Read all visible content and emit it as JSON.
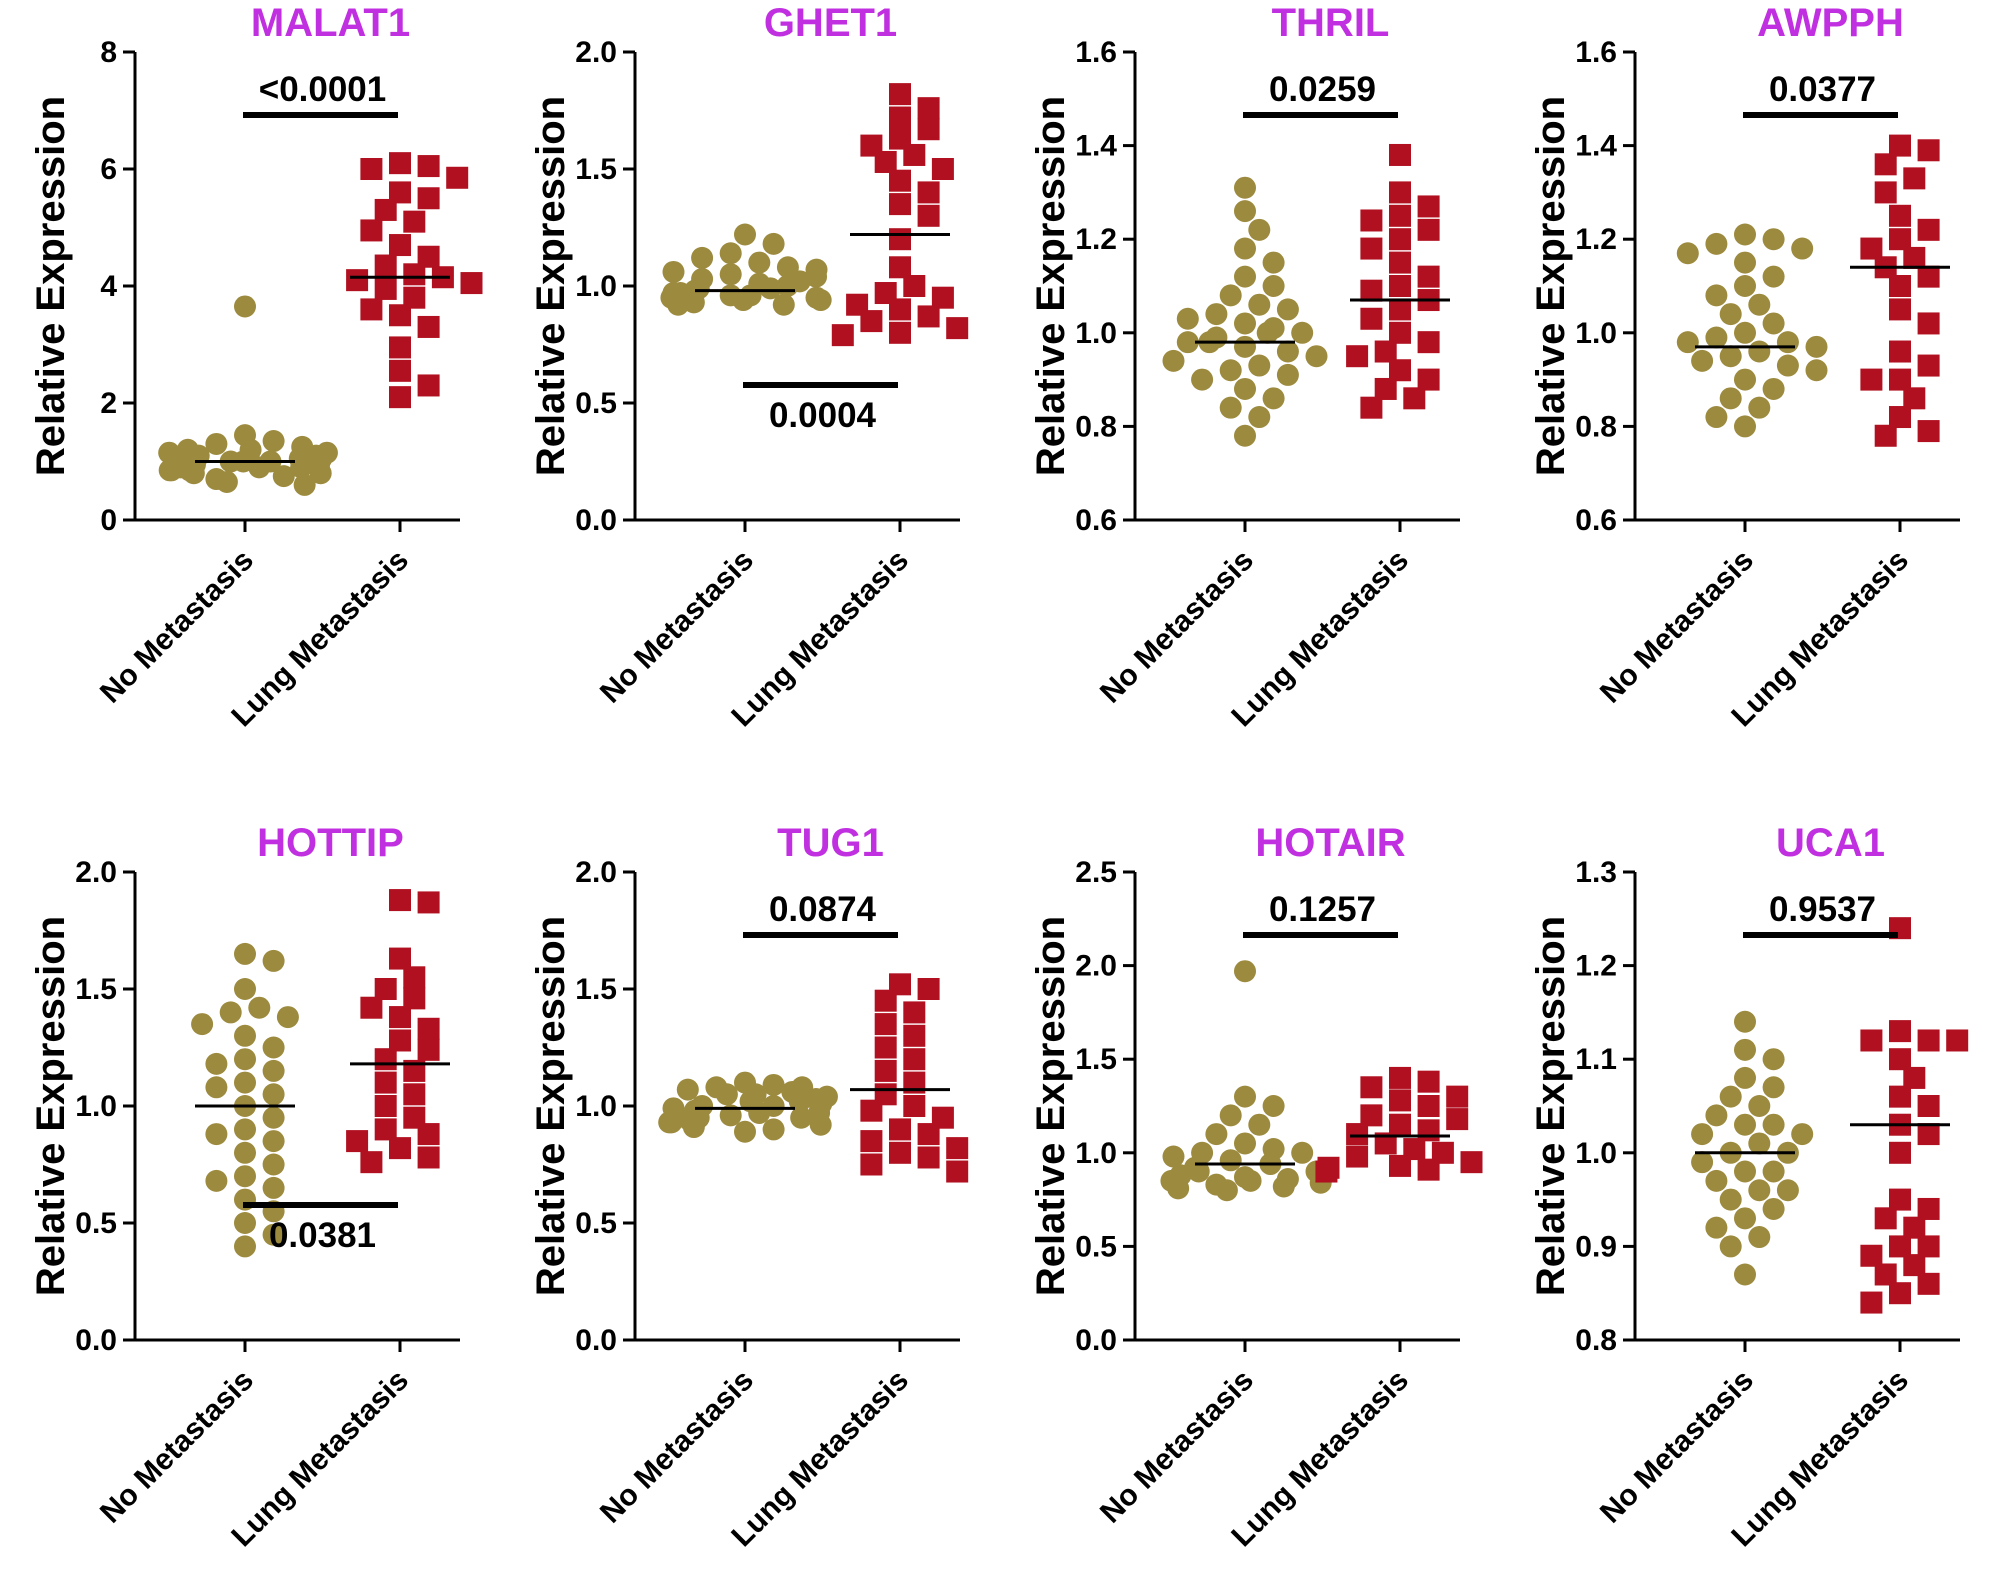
{
  "figure": {
    "colors": {
      "title": "#c030e0",
      "no_metastasis": "#9c8a3e",
      "lung_metastasis": "#b01020",
      "axis": "#000000",
      "background": "#ffffff"
    },
    "marker_shapes": {
      "no_metastasis": "circle",
      "lung_metastasis": "square"
    }
  },
  "chart_data": [
    {
      "type": "scatter",
      "title": "MALAT1",
      "ylabel": "Relative Expression",
      "categories": [
        "No Metastasis",
        "Lung Metastasis"
      ],
      "ylim": [
        0,
        8
      ],
      "yticks": [
        0,
        2,
        4,
        6,
        8
      ],
      "ytick_labels": [
        "0",
        "2",
        "4",
        "6",
        "8"
      ],
      "p_value": "<0.0001",
      "p_position": "top",
      "series": [
        {
          "name": "No Metastasis",
          "mean": 1.0,
          "values": [
            3.65,
            1.45,
            1.35,
            1.3,
            1.25,
            1.2,
            1.15,
            1.1,
            1.05,
            1.05,
            1.0,
            1.0,
            0.95,
            0.95,
            0.9,
            0.9,
            0.85,
            0.85,
            0.8,
            0.8,
            0.75,
            0.7,
            0.65,
            0.6,
            1.1,
            1.2,
            0.9,
            1.0,
            1.15,
            0.85
          ]
        },
        {
          "name": "Lung Metastasis",
          "mean": 4.15,
          "values": [
            6.1,
            6.05,
            6.0,
            5.85,
            5.6,
            5.5,
            5.3,
            5.1,
            4.95,
            4.7,
            4.5,
            4.35,
            4.2,
            4.15,
            4.1,
            4.05,
            3.95,
            3.8,
            3.6,
            3.5,
            3.3,
            2.95,
            2.55,
            2.3,
            2.1
          ]
        }
      ]
    },
    {
      "type": "scatter",
      "title": "GHET1",
      "ylabel": "Relative Expression",
      "categories": [
        "No Metastasis",
        "Lung Metastasis"
      ],
      "ylim": [
        0,
        2
      ],
      "yticks": [
        0,
        0.5,
        1.0,
        1.5,
        2.0
      ],
      "ytick_labels": [
        "0.0",
        "0.5",
        "1.0",
        "1.5",
        "2.0"
      ],
      "p_value": "0.0004",
      "p_position": "bottom",
      "series": [
        {
          "name": "No Metastasis",
          "mean": 0.98,
          "values": [
            1.22,
            1.18,
            1.14,
            1.1,
            1.08,
            1.06,
            1.05,
            1.04,
            1.02,
            1.01,
            1.0,
            0.99,
            0.98,
            0.97,
            0.97,
            0.96,
            0.95,
            0.95,
            0.94,
            0.93,
            0.92,
            0.92,
            1.12,
            1.03,
            0.99,
            0.96,
            1.07,
            0.94
          ]
        },
        {
          "name": "Lung Metastasis",
          "mean": 1.22,
          "values": [
            1.82,
            1.76,
            1.72,
            1.67,
            1.63,
            1.6,
            1.56,
            1.53,
            1.5,
            1.45,
            1.4,
            1.35,
            1.3,
            1.2,
            1.08,
            1.0,
            0.97,
            0.95,
            0.92,
            0.9,
            0.87,
            0.85,
            0.82,
            0.8,
            0.79
          ]
        }
      ]
    },
    {
      "type": "scatter",
      "title": "THRIL",
      "ylabel": "Relative Expression",
      "categories": [
        "No Metastasis",
        "Lung Metastasis"
      ],
      "ylim": [
        0.6,
        1.6
      ],
      "yticks": [
        0.6,
        0.8,
        1.0,
        1.2,
        1.4,
        1.6
      ],
      "ytick_labels": [
        "0.6",
        "0.8",
        "1.0",
        "1.2",
        "1.4",
        "1.6"
      ],
      "p_value": "0.0259",
      "p_position": "top",
      "series": [
        {
          "name": "No Metastasis",
          "mean": 0.98,
          "values": [
            1.31,
            1.26,
            1.22,
            1.18,
            1.15,
            1.12,
            1.1,
            1.08,
            1.06,
            1.05,
            1.04,
            1.03,
            1.02,
            1.01,
            1.0,
            0.99,
            0.98,
            0.97,
            0.96,
            0.95,
            0.94,
            0.93,
            0.92,
            0.91,
            0.9,
            0.88,
            0.86,
            0.84,
            0.82,
            0.78,
            0.98,
            1.0
          ]
        },
        {
          "name": "Lung Metastasis",
          "mean": 1.07,
          "values": [
            1.38,
            1.3,
            1.27,
            1.25,
            1.24,
            1.22,
            1.2,
            1.18,
            1.15,
            1.12,
            1.1,
            1.09,
            1.07,
            1.05,
            1.03,
            1.0,
            0.98,
            0.96,
            0.95,
            0.92,
            0.9,
            0.88,
            0.86,
            0.84
          ]
        }
      ]
    },
    {
      "type": "scatter",
      "title": "AWPPH",
      "ylabel": "Relative Expression",
      "categories": [
        "No Metastasis",
        "Lung Metastasis"
      ],
      "ylim": [
        0.6,
        1.6
      ],
      "yticks": [
        0.6,
        0.8,
        1.0,
        1.2,
        1.4,
        1.6
      ],
      "ytick_labels": [
        "0.6",
        "0.8",
        "1.0",
        "1.2",
        "1.4",
        "1.6"
      ],
      "p_value": "0.0377",
      "p_position": "top",
      "series": [
        {
          "name": "No Metastasis",
          "mean": 0.97,
          "values": [
            1.21,
            1.2,
            1.19,
            1.17,
            1.15,
            1.12,
            1.1,
            1.08,
            1.06,
            1.04,
            1.02,
            1.0,
            0.99,
            0.98,
            0.97,
            0.96,
            0.95,
            0.94,
            0.92,
            0.9,
            0.88,
            0.86,
            0.84,
            0.82,
            0.8,
            1.18,
            0.98,
            0.93
          ]
        },
        {
          "name": "Lung Metastasis",
          "mean": 1.14,
          "values": [
            1.4,
            1.39,
            1.36,
            1.33,
            1.3,
            1.25,
            1.22,
            1.2,
            1.18,
            1.16,
            1.14,
            1.12,
            1.1,
            1.05,
            1.02,
            0.96,
            0.93,
            0.9,
            0.9,
            0.86,
            0.82,
            0.79,
            0.78
          ]
        }
      ]
    },
    {
      "type": "scatter",
      "title": "HOTTIP",
      "ylabel": "Relative Expression",
      "categories": [
        "No Metastasis",
        "Lung Metastasis"
      ],
      "ylim": [
        0,
        2
      ],
      "yticks": [
        0,
        0.5,
        1.0,
        1.5,
        2.0
      ],
      "ytick_labels": [
        "0.0",
        "0.5",
        "1.0",
        "1.5",
        "2.0"
      ],
      "p_value": "0.0381",
      "p_position": "bottom",
      "series": [
        {
          "name": "No Metastasis",
          "mean": 1.0,
          "values": [
            1.65,
            1.62,
            1.5,
            1.42,
            1.4,
            1.38,
            1.3,
            1.25,
            1.2,
            1.15,
            1.1,
            1.05,
            1.0,
            0.95,
            0.9,
            0.85,
            0.8,
            0.75,
            0.7,
            0.65,
            0.6,
            0.55,
            0.5,
            0.45,
            0.4,
            1.35,
            1.08,
            0.88,
            0.68,
            1.18
          ]
        },
        {
          "name": "Lung Metastasis",
          "mean": 1.18,
          "values": [
            1.88,
            1.87,
            1.63,
            1.55,
            1.5,
            1.46,
            1.42,
            1.38,
            1.33,
            1.28,
            1.24,
            1.2,
            1.15,
            1.1,
            1.05,
            1.0,
            0.95,
            0.9,
            0.88,
            0.85,
            0.82,
            0.78,
            0.76
          ]
        }
      ]
    },
    {
      "type": "scatter",
      "title": "TUG1",
      "ylabel": "Relative Expression",
      "categories": [
        "No Metastasis",
        "Lung Metastasis"
      ],
      "ylim": [
        0,
        2
      ],
      "yticks": [
        0,
        0.5,
        1.0,
        1.5,
        2.0
      ],
      "ytick_labels": [
        "0.0",
        "0.5",
        "1.0",
        "1.5",
        "2.0"
      ],
      "p_value": "0.0874",
      "p_position": "top",
      "series": [
        {
          "name": "No Metastasis",
          "mean": 0.99,
          "values": [
            1.1,
            1.09,
            1.08,
            1.07,
            1.06,
            1.05,
            1.04,
            1.03,
            1.02,
            1.01,
            1.0,
            0.99,
            0.98,
            0.97,
            0.96,
            0.95,
            0.94,
            0.93,
            0.92,
            0.91,
            0.9,
            0.89,
            1.05,
            1.0,
            0.95,
            1.02,
            0.97,
            1.08,
            0.93
          ]
        },
        {
          "name": "Lung Metastasis",
          "mean": 1.07,
          "values": [
            1.52,
            1.5,
            1.45,
            1.4,
            1.35,
            1.3,
            1.25,
            1.2,
            1.15,
            1.1,
            1.05,
            1.0,
            0.98,
            0.95,
            0.9,
            0.88,
            0.85,
            0.82,
            0.8,
            0.78,
            0.75,
            0.72
          ]
        }
      ]
    },
    {
      "type": "scatter",
      "title": "HOTAIR",
      "ylabel": "Relative Expression",
      "categories": [
        "No Metastasis",
        "Lung Metastasis"
      ],
      "ylim": [
        0,
        2.5
      ],
      "yticks": [
        0,
        0.5,
        1.0,
        1.5,
        2.0,
        2.5
      ],
      "ytick_labels": [
        "0.0",
        "0.5",
        "1.0",
        "1.5",
        "2.0",
        "2.5"
      ],
      "p_value": "0.1257",
      "p_position": "top",
      "series": [
        {
          "name": "No Metastasis",
          "mean": 0.94,
          "values": [
            1.97,
            1.3,
            1.25,
            1.2,
            1.15,
            1.1,
            1.05,
            1.02,
            1.0,
            0.98,
            0.96,
            0.94,
            0.92,
            0.9,
            0.88,
            0.87,
            0.86,
            0.85,
            0.84,
            0.83,
            0.82,
            0.81,
            0.8,
            1.0,
            0.9,
            0.85
          ]
        },
        {
          "name": "Lung Metastasis",
          "mean": 1.09,
          "values": [
            1.4,
            1.38,
            1.35,
            1.3,
            1.28,
            1.25,
            1.2,
            1.15,
            1.12,
            1.1,
            1.05,
            1.0,
            0.98,
            0.95,
            0.93,
            0.92,
            0.91,
            0.9,
            1.02,
            1.18
          ]
        }
      ]
    },
    {
      "type": "scatter",
      "title": "UCA1",
      "ylabel": "Relative Expression",
      "categories": [
        "No Metastasis",
        "Lung Metastasis"
      ],
      "ylim": [
        0.8,
        1.3
      ],
      "yticks": [
        0.8,
        0.9,
        1.0,
        1.1,
        1.2,
        1.3
      ],
      "ytick_labels": [
        "0.8",
        "0.9",
        "1.0",
        "1.1",
        "1.2",
        "1.3"
      ],
      "p_value": "0.9537",
      "p_position": "top",
      "series": [
        {
          "name": "No Metastasis",
          "mean": 1.0,
          "values": [
            1.14,
            1.11,
            1.1,
            1.08,
            1.07,
            1.06,
            1.05,
            1.04,
            1.03,
            1.02,
            1.01,
            1.0,
            0.99,
            0.98,
            0.97,
            0.96,
            0.95,
            0.94,
            0.93,
            0.92,
            0.91,
            0.9,
            0.87,
            1.02,
            0.98,
            1.0,
            0.96,
            1.03
          ]
        },
        {
          "name": "Lung Metastasis",
          "mean": 1.03,
          "values": [
            1.24,
            1.13,
            1.12,
            1.12,
            1.12,
            1.1,
            1.08,
            1.06,
            1.05,
            1.03,
            1.02,
            1.0,
            0.95,
            0.94,
            0.93,
            0.92,
            0.9,
            0.9,
            0.89,
            0.88,
            0.87,
            0.86,
            0.85,
            0.84
          ]
        }
      ]
    }
  ]
}
